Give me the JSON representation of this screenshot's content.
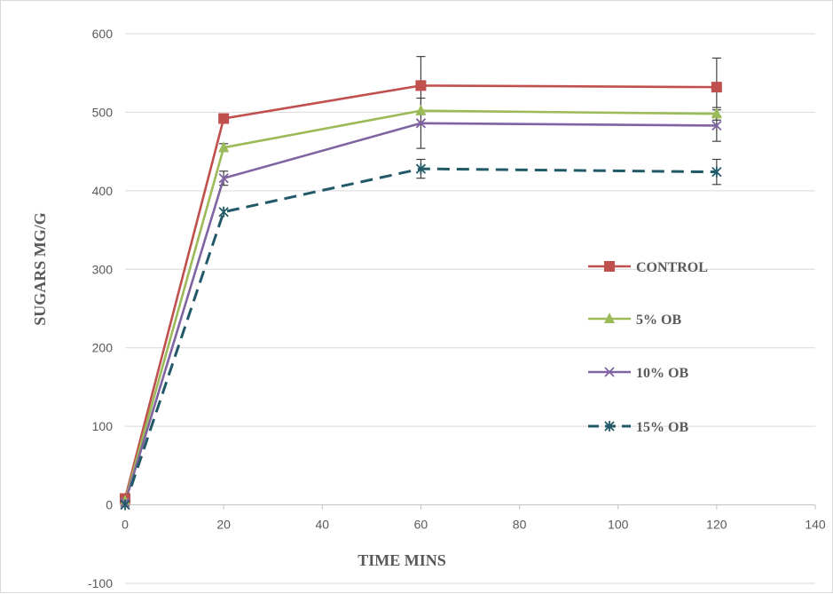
{
  "chart_data": {
    "type": "line",
    "title": "",
    "xlabel": "TIME MINS",
    "ylabel": "SUGARS MG/G",
    "xlim": [
      0,
      140
    ],
    "ylim": [
      -100,
      600
    ],
    "xticks": [
      0,
      20,
      40,
      60,
      80,
      100,
      120,
      140
    ],
    "yticks": [
      -100,
      0,
      100,
      200,
      300,
      400,
      500,
      600
    ],
    "grid": "horizontal",
    "legend_position": "right",
    "x": [
      0,
      20,
      60,
      120
    ],
    "series": [
      {
        "name": "CONTROL",
        "values": [
          8,
          492,
          534,
          532
        ],
        "errors": [
          null,
          null,
          37,
          37
        ],
        "color": "#C0504D",
        "marker": "square",
        "dash": "solid"
      },
      {
        "name": "5% OB",
        "values": [
          5,
          455,
          502,
          498
        ],
        "errors": [
          null,
          5,
          null,
          8
        ],
        "color": "#9BBB59",
        "marker": "triangle",
        "dash": "solid"
      },
      {
        "name": "10% OB",
        "values": [
          3,
          416,
          486,
          483
        ],
        "errors": [
          null,
          9,
          32,
          20
        ],
        "color": "#8064A2",
        "marker": "x",
        "dash": "solid"
      },
      {
        "name": "15% OB",
        "values": [
          0,
          373,
          428,
          424
        ],
        "errors": [
          null,
          null,
          12,
          16
        ],
        "color": "#215968",
        "marker": "star",
        "dash": "dashed"
      }
    ]
  }
}
